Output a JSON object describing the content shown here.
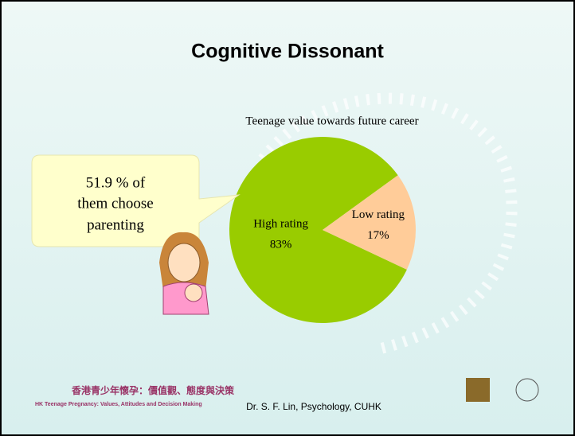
{
  "slide": {
    "title": "Cognitive Dissonant",
    "callout": [
      "51.9 % of",
      "them choose",
      "parenting"
    ],
    "footer": "Dr. S. F. Lin, Psychology, CUHK",
    "banner": [
      "香港青少年懷孕：價值觀、態度與決策",
      "HK Teenage Pregnancy: Values, Attitudes and Decision Making"
    ]
  },
  "chart_data": {
    "type": "pie",
    "title": "Teenage value towards future career",
    "categories": [
      "High rating",
      "Low rating"
    ],
    "values": [
      83,
      17
    ],
    "value_labels": [
      "83%",
      "17%"
    ],
    "colors": [
      "#99cc00",
      "#ffcc99"
    ]
  }
}
